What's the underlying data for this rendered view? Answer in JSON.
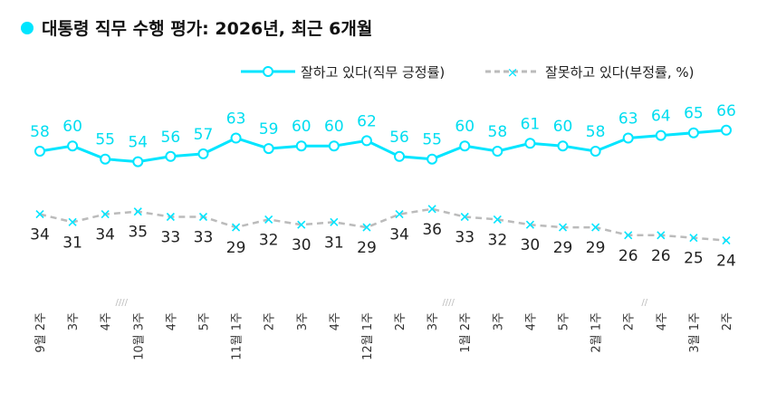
{
  "chart_data": {
    "type": "line",
    "title": "대통령 직무 수행 평가: 2026년, 최근 6개월",
    "categories": [
      "9월 2주",
      "3주",
      "4주",
      "10월 3주",
      "4주",
      "5주",
      "11월 1주",
      "2주",
      "3주",
      "4주",
      "12월 1주",
      "2주",
      "3주",
      "1월 2주",
      "3주",
      "4주",
      "5주",
      "2월 1주",
      "2주",
      "4주",
      "3월 1주",
      "2주"
    ],
    "series": [
      {
        "name": "잘하고 있다(직무 긍정률)",
        "color": "#00e5ff",
        "values": [
          58,
          60,
          55,
          54,
          56,
          57,
          63,
          59,
          60,
          60,
          62,
          56,
          55,
          60,
          58,
          61,
          60,
          58,
          63,
          64,
          65,
          66
        ]
      },
      {
        "name": "잘못하고 있다(부정률, %)",
        "color": "#bbbbbb",
        "marker_color": "#00e5ff",
        "values": [
          34,
          31,
          34,
          35,
          33,
          33,
          29,
          32,
          30,
          31,
          29,
          34,
          36,
          33,
          32,
          30,
          29,
          29,
          26,
          26,
          25,
          24
        ]
      }
    ],
    "break_marks": [
      {
        "after": 2,
        "text": "////"
      },
      {
        "after": 12,
        "text": "////"
      },
      {
        "after": 18,
        "text": "//"
      }
    ],
    "legend": "top-right",
    "grid": false
  }
}
